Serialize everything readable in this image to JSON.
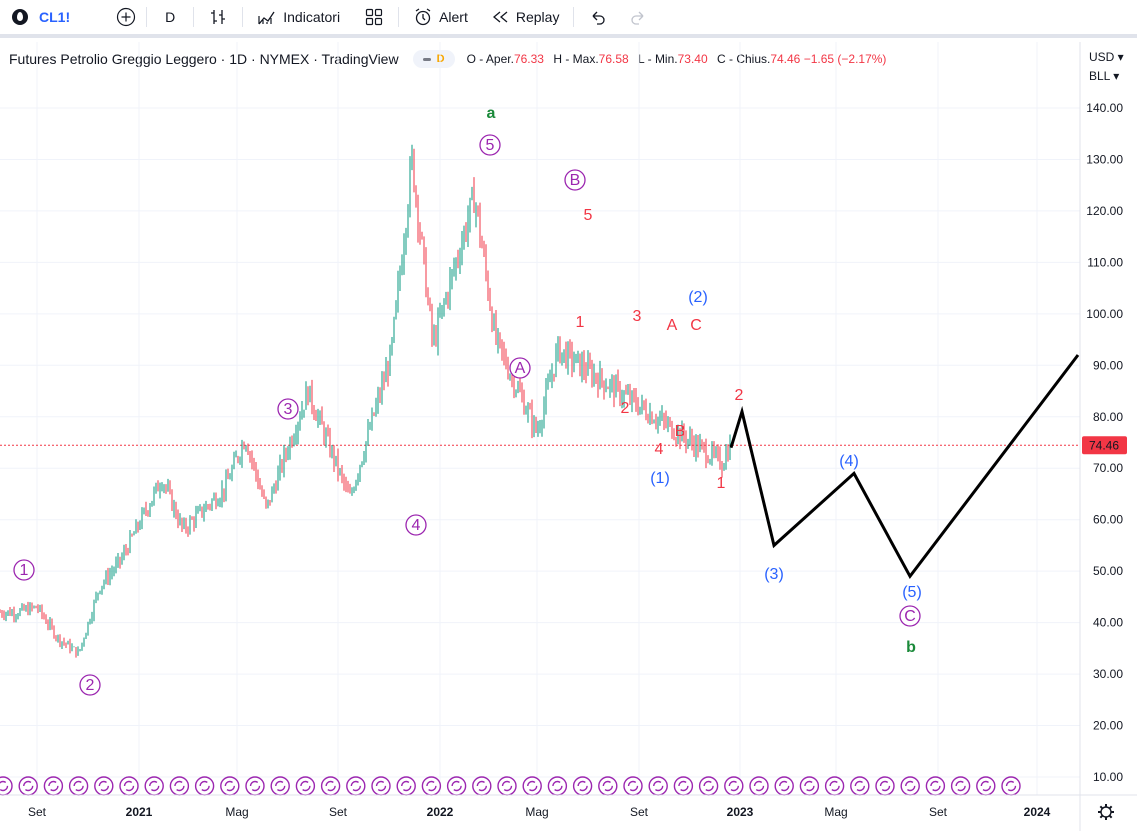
{
  "toolbar": {
    "symbol": "CL1!",
    "interval": "D",
    "indicators_label": "Indicatori",
    "alert_label": "Alert",
    "replay_label": "Replay"
  },
  "legend": {
    "title": "Futures Petrolio Greggio Leggero · 1D · NYMEX · TradingView",
    "badge": "D",
    "o_label": "O - Aper.",
    "o": "76.33",
    "h_label": "H - Max.",
    "h": "76.58",
    "l_label": "L - Min.",
    "l": "73.40",
    "c_label": "C - Chius.",
    "c": "74.46",
    "change": "−1.65 (−2.17%)"
  },
  "price_axis": {
    "currency": "USD",
    "unit": "BLL",
    "ticks": [
      "140.00",
      "130.00",
      "120.00",
      "110.00",
      "100.00",
      "90.00",
      "80.00",
      "70.00",
      "60.00",
      "50.00",
      "40.00",
      "30.00",
      "20.00",
      "10.00"
    ],
    "current_price": "74.46",
    "current_price_color": "#f23645"
  },
  "time_axis": {
    "ticks": [
      {
        "label": "Set",
        "year": false
      },
      {
        "label": "2021",
        "year": true
      },
      {
        "label": "Mag",
        "year": false
      },
      {
        "label": "Set",
        "year": false
      },
      {
        "label": "2022",
        "year": true
      },
      {
        "label": "Mag",
        "year": false
      },
      {
        "label": "Set",
        "year": false
      },
      {
        "label": "2023",
        "year": true
      },
      {
        "label": "Mag",
        "year": false
      },
      {
        "label": "Set",
        "year": false
      },
      {
        "label": "2024",
        "year": true
      }
    ]
  },
  "colors": {
    "up": "#089981",
    "down": "#f23645",
    "wave_major": "#9c27b0",
    "wave_intermediate": "#2962ff",
    "wave_minor": "#f23645",
    "wave_cycle": "#1b8a3a",
    "projection": "#000000"
  },
  "wave_labels": {
    "cycle": [
      "a",
      "b"
    ],
    "major_circled": [
      "1",
      "2",
      "3",
      "4",
      "5",
      "A",
      "B",
      "C"
    ],
    "intermediate": [
      "(1)",
      "(2)",
      "(3)",
      "(4)",
      "(5)"
    ],
    "minor": [
      "1",
      "2",
      "3",
      "4",
      "5",
      "1",
      "2",
      "A",
      "B",
      "C"
    ]
  },
  "chart_data": {
    "type": "candlestick",
    "symbol": "CL1!",
    "timeframe": "1D",
    "ylim": [
      5,
      147
    ],
    "price_path": [
      {
        "date": "2020-08",
        "price": 42
      },
      {
        "date": "2020-09",
        "price": 43
      },
      {
        "date": "2020-10",
        "price": 37
      },
      {
        "date": "2020-11",
        "price": 34
      },
      {
        "date": "2020-12",
        "price": 47
      },
      {
        "date": "2021-01",
        "price": 52
      },
      {
        "date": "2021-03",
        "price": 68
      },
      {
        "date": "2021-04",
        "price": 58
      },
      {
        "date": "2021-06",
        "price": 66
      },
      {
        "date": "2021-07",
        "price": 76
      },
      {
        "date": "2021-08",
        "price": 62
      },
      {
        "date": "2021-10",
        "price": 85
      },
      {
        "date": "2021-12",
        "price": 64
      },
      {
        "date": "2022-01",
        "price": 78
      },
      {
        "date": "2022-02",
        "price": 92
      },
      {
        "date": "2022-03",
        "price": 130
      },
      {
        "date": "2022-04",
        "price": 94
      },
      {
        "date": "2022-06",
        "price": 123
      },
      {
        "date": "2022-07",
        "price": 95
      },
      {
        "date": "2022-09",
        "price": 77
      },
      {
        "date": "2022-10",
        "price": 93
      },
      {
        "date": "2022-12",
        "price": 71
      },
      {
        "date": "2022-12",
        "price": 74.46
      }
    ],
    "projection": [
      {
        "date": "2022-12",
        "price": 74
      },
      {
        "date": "2023-01",
        "price": 81
      },
      {
        "date": "2023-03",
        "price": 55
      },
      {
        "date": "2023-08",
        "price": 69
      },
      {
        "date": "2023-10",
        "price": 49
      },
      {
        "date": "2024-02",
        "price": 92
      }
    ],
    "last": {
      "open": 76.33,
      "high": 76.58,
      "low": 73.4,
      "close": 74.46,
      "change": -1.65,
      "change_pct": -2.17
    }
  }
}
